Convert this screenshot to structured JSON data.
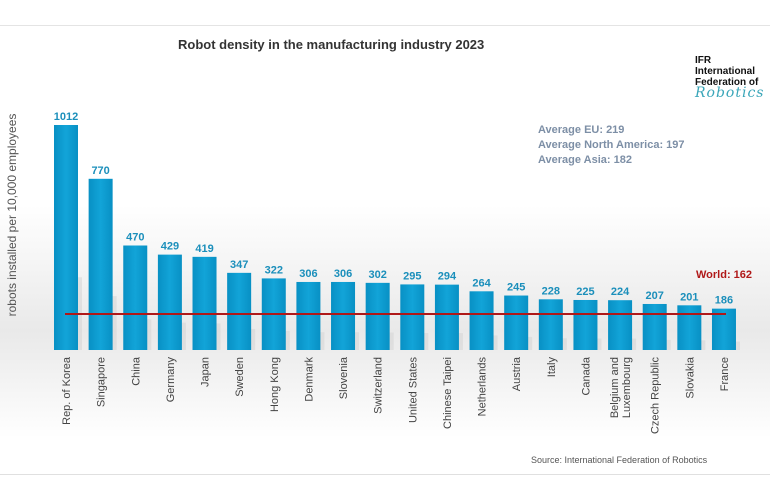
{
  "chart_data": {
    "type": "bar",
    "title": "Robot density in the manufacturing industry 2023",
    "ylabel": "robots installed per 10,000 employees",
    "xlabel": "",
    "ylim": [
      0,
      1012
    ],
    "grid": false,
    "categories": [
      "Rep. of Korea",
      "Singapore",
      "China",
      "Germany",
      "Japan",
      "Sweden",
      "Hong Kong",
      "Denmark",
      "Slovenia",
      "Switzerland",
      "United States",
      "Chinese Taipei",
      "Netherlands",
      "Austria",
      "Italy",
      "Canada",
      "Belgium and Luxembourg",
      "Czech Republic",
      "Slovakia",
      "France"
    ],
    "values": [
      1012,
      770,
      470,
      429,
      419,
      347,
      322,
      306,
      306,
      302,
      295,
      294,
      264,
      245,
      228,
      225,
      224,
      207,
      201,
      186
    ],
    "reference_line": {
      "label": "World: 162",
      "value": 162,
      "color": "#b01818"
    },
    "annotations": [
      "Average EU: 219",
      "Average North America: 197",
      "Average Asia: 182"
    ],
    "source": "Source: International Federation of Robotics",
    "bar_color": "#0a9ad0"
  },
  "logo": {
    "line1": "IFR",
    "line2": "International",
    "line3": "Federation of",
    "line4": "Robotics"
  }
}
